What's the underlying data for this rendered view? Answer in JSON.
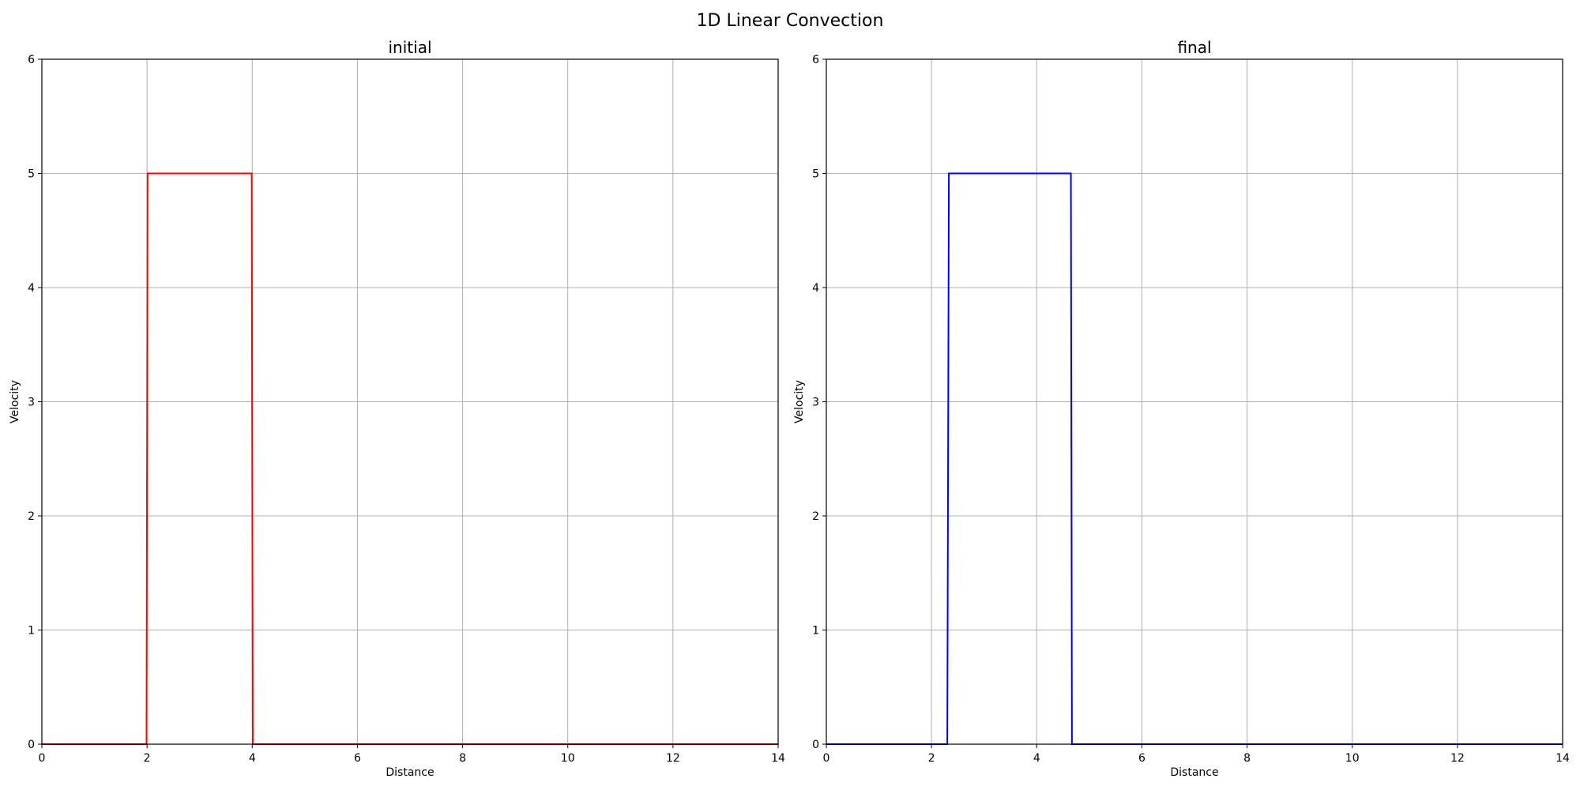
{
  "figure": {
    "title": "1D Linear Convection"
  },
  "chart_data": [
    {
      "type": "line",
      "title": "initial",
      "xlabel": "Distance",
      "ylabel": "Velocity",
      "xlim": [
        0,
        14
      ],
      "ylim": [
        0,
        6
      ],
      "xticks": [
        0,
        2,
        4,
        6,
        8,
        10,
        12,
        14
      ],
      "yticks": [
        0,
        1,
        2,
        3,
        4,
        5,
        6
      ],
      "grid": true,
      "color": "#ff0000",
      "series": [
        {
          "x": [
            0,
            1.99,
            2.01,
            3.99,
            4.01,
            14
          ],
          "y": [
            0,
            0,
            5,
            5,
            0,
            0
          ]
        }
      ]
    },
    {
      "type": "line",
      "title": "final",
      "xlabel": "Distance",
      "ylabel": "Velocity",
      "xlim": [
        0,
        14
      ],
      "ylim": [
        0,
        6
      ],
      "xticks": [
        0,
        2,
        4,
        6,
        8,
        10,
        12,
        14
      ],
      "yticks": [
        0,
        1,
        2,
        3,
        4,
        5,
        6
      ],
      "grid": true,
      "color": "#0000ff",
      "series": [
        {
          "x": [
            0,
            2.3,
            2.33,
            4.65,
            4.67,
            14
          ],
          "y": [
            0,
            0,
            5,
            5,
            0,
            0
          ]
        }
      ]
    }
  ]
}
